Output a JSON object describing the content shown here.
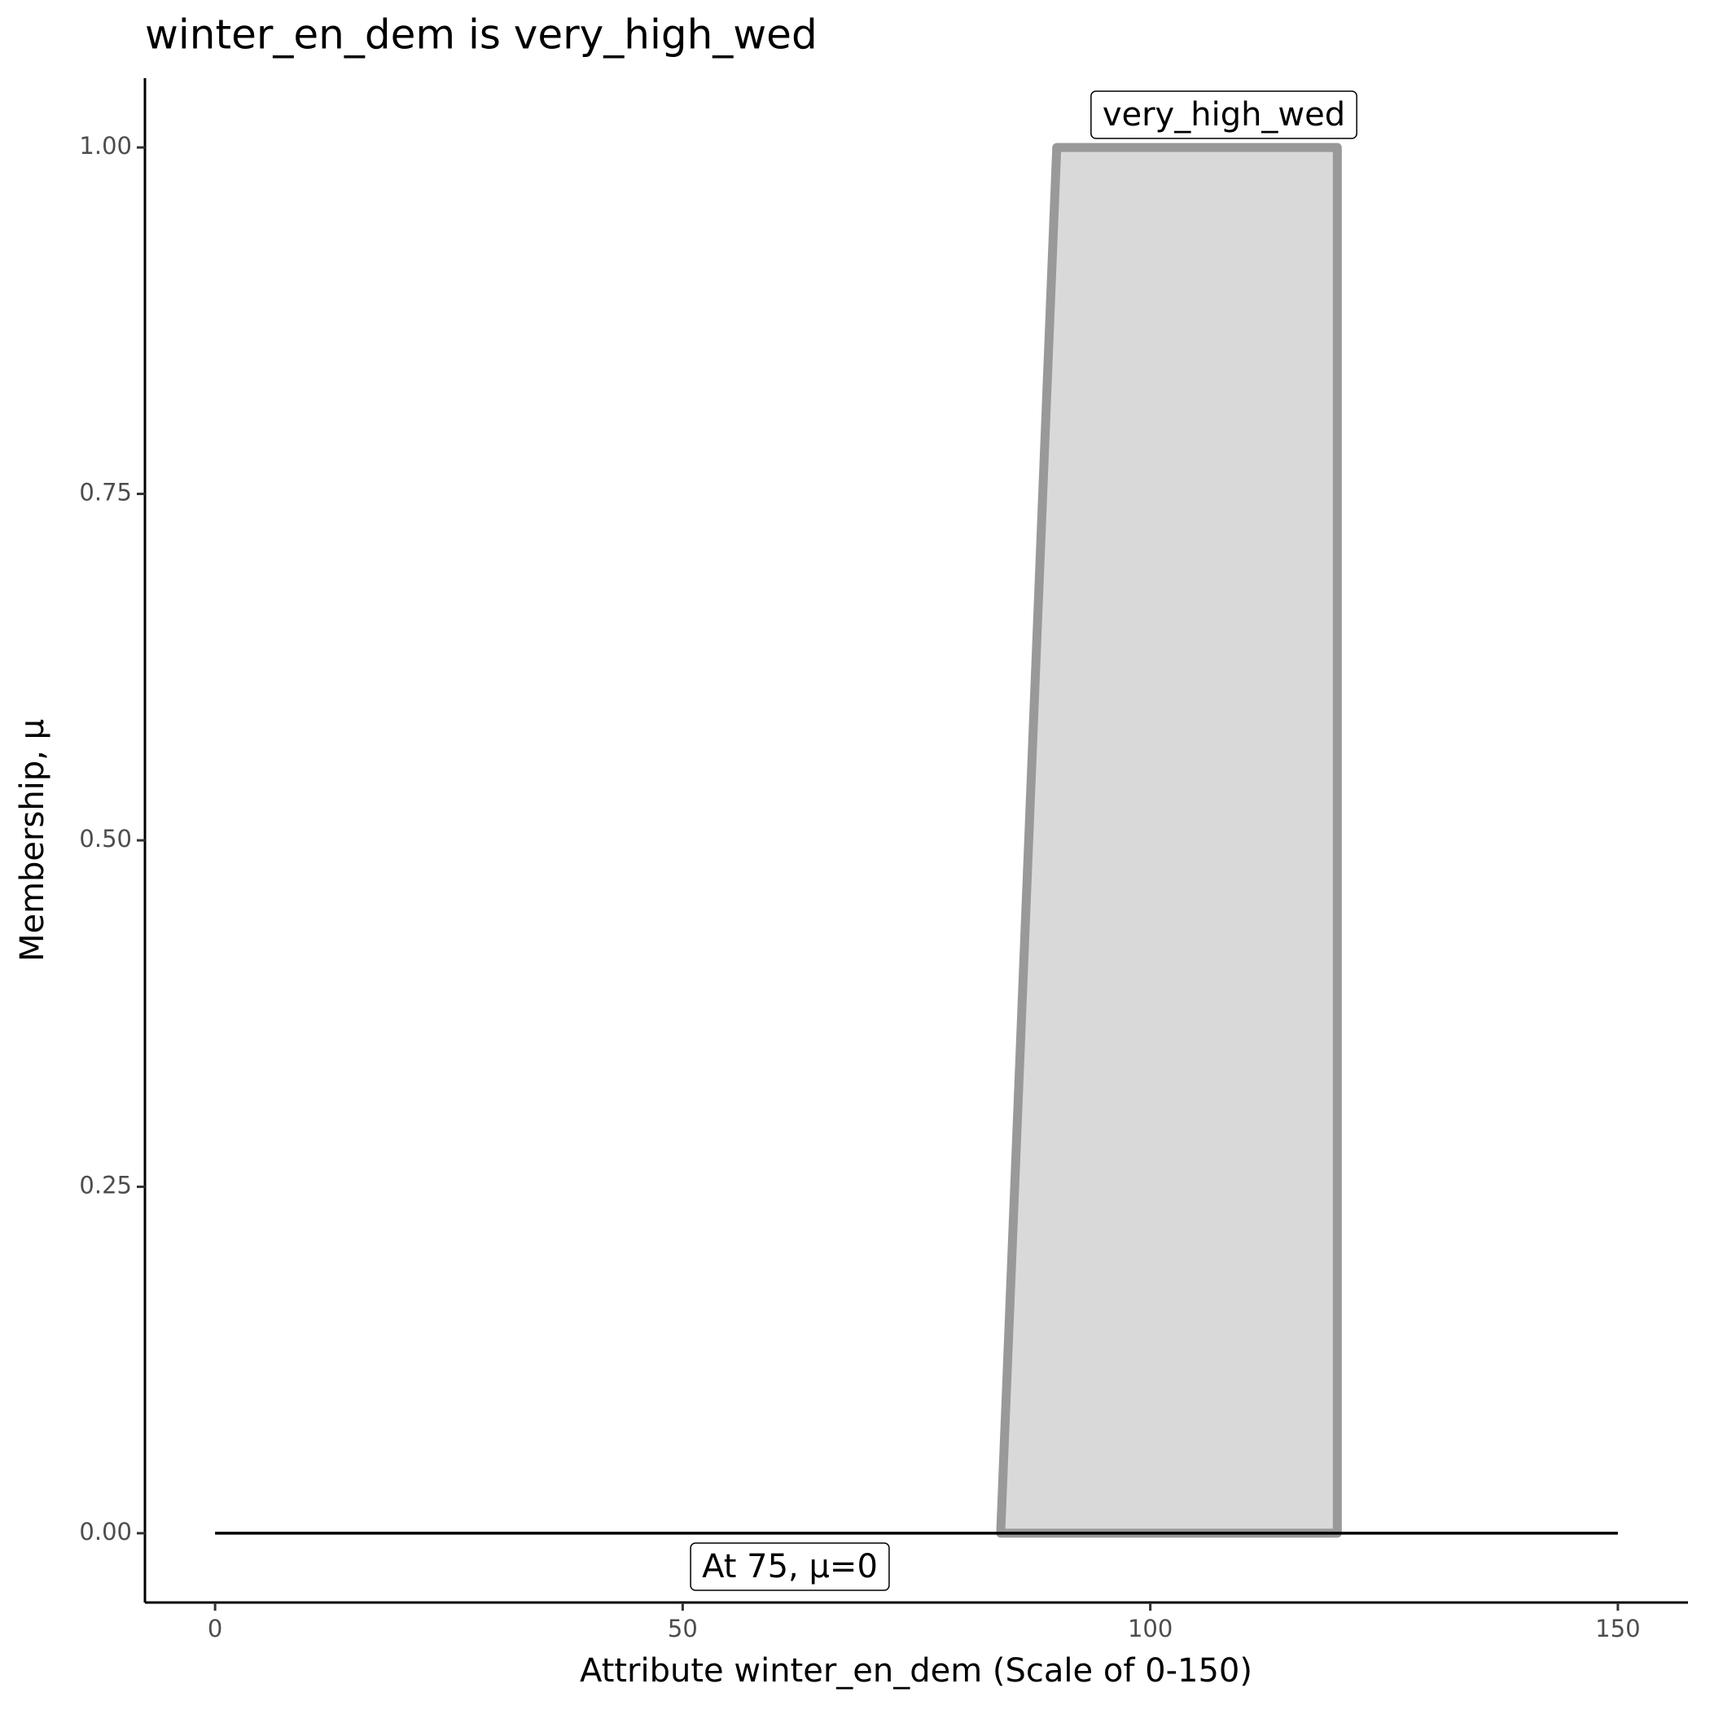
{
  "chart_data": {
    "type": "line",
    "title": "winter_en_dem is very_high_wed",
    "x_label": "Attribute winter_en_dem (Scale of 0-150)",
    "y_label": "Membership, μ",
    "series": [
      {
        "name": "very_high_wed",
        "color": "#999999",
        "fill": "#d9d9d9",
        "x": [
          84,
          90,
          120,
          120
        ],
        "values": [
          0,
          1,
          1,
          0
        ]
      },
      {
        "color": "#000000",
        "x": [
          0,
          150
        ],
        "values": [
          0,
          0
        ]
      }
    ],
    "annotations": [
      "very_high_wed",
      "At 75, μ=0"
    ],
    "xlim": [
      -7.5,
      157.5
    ],
    "ylim": [
      -0.05,
      1.05
    ],
    "xticks": [
      0,
      50,
      100,
      150
    ],
    "yticks": [
      {
        "value": 0,
        "label": "0.00"
      },
      {
        "value": 0.25,
        "label": "0.25"
      },
      {
        "value": 0.5,
        "label": "0.50"
      },
      {
        "value": 0.75,
        "label": "0.75"
      },
      {
        "value": 1,
        "label": "1.00"
      }
    ],
    "grid": false
  }
}
